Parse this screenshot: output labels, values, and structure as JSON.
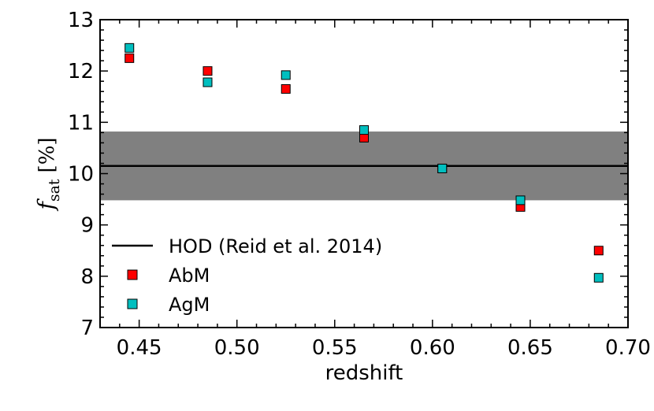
{
  "chart_data": {
    "type": "scatter",
    "xlabel": "redshift",
    "ylabel": {
      "symbol": "f",
      "subscript": "sat",
      "unit": "[%]"
    },
    "xlim": [
      0.43,
      0.7
    ],
    "ylim": [
      7,
      13
    ],
    "x_ticks": [
      0.45,
      0.5,
      0.55,
      0.6,
      0.65,
      0.7
    ],
    "x_tick_labels": [
      "0.45",
      "0.50",
      "0.55",
      "0.60",
      "0.65",
      "0.70"
    ],
    "y_ticks": [
      7,
      8,
      9,
      10,
      11,
      12,
      13
    ],
    "y_tick_labels": [
      "7",
      "8",
      "9",
      "10",
      "11",
      "12",
      "13"
    ],
    "reference": {
      "label": "HOD (Reid et al. 2014)",
      "value": 10.15,
      "band": [
        9.48,
        10.82
      ],
      "line_color": "#000000",
      "band_color": "#808080"
    },
    "series": [
      {
        "name": "AbM",
        "color": "#ff0000",
        "x": [
          0.445,
          0.485,
          0.525,
          0.565,
          0.605,
          0.645,
          0.685
        ],
        "y": [
          12.25,
          12.0,
          11.65,
          10.7,
          10.1,
          9.35,
          8.5
        ]
      },
      {
        "name": "AgM",
        "color": "#00bfbf",
        "x": [
          0.445,
          0.485,
          0.525,
          0.565,
          0.605,
          0.645,
          0.685
        ],
        "y": [
          12.45,
          11.78,
          11.92,
          10.85,
          10.1,
          9.48,
          7.97
        ]
      }
    ],
    "legend_position": "lower-left"
  }
}
